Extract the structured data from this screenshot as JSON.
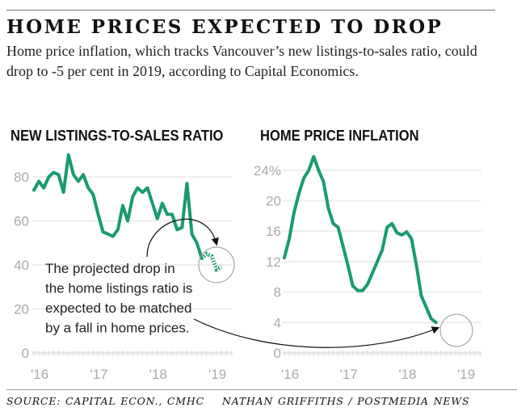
{
  "header": {
    "title": "HOME PRICES EXPECTED TO DROP",
    "subtitle": "Home price inflation, which tracks Vancouver’s new listings-to-sales ratio, could drop to -5 per cent in 2019, according to Capital Economics."
  },
  "footer": {
    "source": "SOURCE: CAPITAL ECON., CMHC",
    "credit": "NATHAN GRIFFITHS / POSTMEDIA NEWS"
  },
  "colors": {
    "line": "#1a9a72",
    "grid": "#eeeeee",
    "axis_text": "#aaaaaa"
  },
  "chart_data": [
    {
      "type": "line",
      "title": "NEW LISTINGS-TO-SALES RATIO",
      "x_start": "Jan 2016",
      "x_unit": "month",
      "x_ticks": [
        "'16",
        "'17",
        "'18",
        "'19"
      ],
      "y_ticks": [
        "0",
        "20",
        "40",
        "60",
        "80"
      ],
      "ylim": [
        0,
        95
      ],
      "values": [
        74,
        78,
        75,
        80,
        82,
        81,
        73,
        90,
        81,
        78,
        81,
        75,
        72,
        63,
        55,
        54,
        53,
        56,
        67,
        60,
        71,
        75,
        73,
        75,
        68,
        61,
        68,
        63,
        63,
        56,
        57,
        77,
        54,
        50,
        43
      ],
      "projection": [
        43,
        45,
        44,
        38,
        39
      ],
      "annotation": [
        "The projected drop in",
        "the home listings ratio is",
        "expected to be matched",
        "by a fall in home prices."
      ]
    },
    {
      "type": "line",
      "title": "HOME PRICE INFLATION",
      "x_start": "Jan 2016",
      "x_unit": "month",
      "x_ticks": [
        "'16",
        "'17",
        "'18",
        "'19"
      ],
      "y_ticks": [
        "0",
        "4",
        "8",
        "12",
        "16",
        "20",
        "24%"
      ],
      "ylim": [
        0,
        27
      ],
      "values": [
        12.5,
        15,
        18.5,
        21,
        23,
        24,
        25.8,
        24,
        22.5,
        19,
        17,
        16.5,
        14,
        11.5,
        8.8,
        8.2,
        8.2,
        9,
        10.5,
        12,
        13.5,
        16.5,
        17,
        15.8,
        15.5,
        15.9,
        15,
        11.5,
        7.5,
        6,
        4.5,
        4
      ]
    }
  ]
}
